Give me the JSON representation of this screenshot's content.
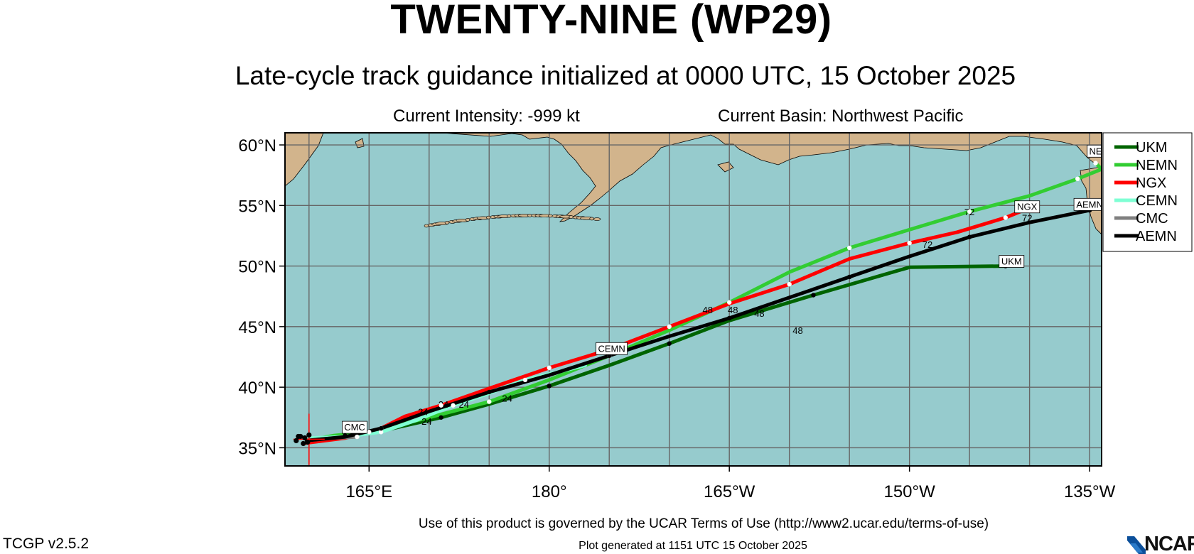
{
  "header": {
    "title": "TWENTY-NINE (WP29)",
    "subtitle": "Late-cycle track guidance initialized at 0000 UTC, 15 October 2025",
    "intensity": "Current Intensity: -999 kt",
    "basin": "Current Basin: Northwest Pacific"
  },
  "axes": {
    "lat_labels": [
      "60°N",
      "55°N",
      "50°N",
      "45°N",
      "40°N",
      "35°N"
    ],
    "lon_labels": [
      "165°E",
      "180°",
      "165°W",
      "150°W",
      "135°W"
    ]
  },
  "colors": {
    "ocean": "#96cbcd",
    "land": "#d2b48c",
    "grid": "#666666",
    "marker": "#ff0000"
  },
  "chart_data": {
    "type": "map",
    "lat_range": [
      33.5,
      61
    ],
    "lon_range_east": [
      158,
      226
    ],
    "initial_position": {
      "lat": 35.7,
      "lon": 160
    },
    "series": [
      {
        "name": "UKM",
        "color": "#006400",
        "label": "UKM",
        "points": [
          [
            159.8,
            35.5
          ],
          [
            161,
            35.7
          ],
          [
            163,
            36.0
          ],
          [
            167,
            36.6
          ],
          [
            171,
            37.5
          ],
          [
            175,
            38.6
          ],
          [
            180,
            40.1
          ],
          [
            185,
            41.8
          ],
          [
            190,
            43.6
          ],
          [
            195,
            45.5
          ],
          [
            202,
            47.6
          ],
          [
            210,
            49.9
          ],
          [
            218,
            50.0
          ]
        ]
      },
      {
        "name": "NEMN",
        "color": "#32cd32",
        "label": "NEMN",
        "points": [
          [
            159.8,
            35.6
          ],
          [
            162,
            36.0
          ],
          [
            165,
            36.3
          ],
          [
            170,
            37.5
          ],
          [
            175,
            38.8
          ],
          [
            180,
            40.6
          ],
          [
            185,
            42.6
          ],
          [
            190,
            44.7
          ],
          [
            195,
            47.0
          ],
          [
            200,
            49.5
          ],
          [
            205,
            51.5
          ],
          [
            210,
            53.0
          ],
          [
            215,
            54.5
          ],
          [
            220,
            55.8
          ],
          [
            224,
            57.2
          ],
          [
            226,
            58.0
          ],
          [
            225.5,
            58.5
          ]
        ]
      },
      {
        "name": "NGX",
        "color": "#ff0000",
        "label": "NGX",
        "points": [
          [
            159.8,
            35.4
          ],
          [
            163,
            35.8
          ],
          [
            166,
            36.6
          ],
          [
            168,
            37.6
          ],
          [
            171,
            38.5
          ],
          [
            175,
            39.9
          ],
          [
            180,
            41.6
          ],
          [
            185,
            43.1
          ],
          [
            190,
            45.0
          ],
          [
            195,
            46.9
          ],
          [
            200,
            48.5
          ],
          [
            205,
            50.6
          ],
          [
            210,
            51.9
          ],
          [
            214,
            52.8
          ],
          [
            218,
            54.0
          ],
          [
            219.5,
            54.6
          ]
        ]
      },
      {
        "name": "CEMN",
        "color": "#7fffd4",
        "label": "CEMN",
        "points": [
          [
            160,
            35.8
          ],
          [
            163,
            35.9
          ],
          [
            166,
            36.3
          ],
          [
            169,
            37.3
          ],
          [
            172,
            38.5
          ],
          [
            175,
            39.5
          ],
          [
            178,
            40.6
          ],
          [
            183,
            41.8
          ]
        ]
      },
      {
        "name": "CMC",
        "color": "#808080",
        "label": "CMC",
        "points": [
          [
            159.8,
            35.6
          ],
          [
            162,
            35.8
          ],
          [
            164,
            35.9
          ]
        ]
      },
      {
        "name": "AEMN",
        "color": "#000000",
        "label": "AEMN",
        "points": [
          [
            159.8,
            35.6
          ],
          [
            163,
            35.9
          ],
          [
            166,
            36.6
          ],
          [
            170,
            38.0
          ],
          [
            175,
            39.6
          ],
          [
            180,
            41.0
          ],
          [
            185,
            42.6
          ],
          [
            190,
            44.2
          ],
          [
            195,
            45.7
          ],
          [
            200,
            47.4
          ],
          [
            205,
            49.1
          ],
          [
            210,
            50.8
          ],
          [
            215,
            52.4
          ],
          [
            220,
            53.6
          ],
          [
            225,
            54.6
          ]
        ]
      }
    ],
    "markers": [
      {
        "label": "24",
        "lon": 169.5,
        "lat": 37.7
      },
      {
        "label": "24",
        "lon": 171.2,
        "lat": 38.3
      },
      {
        "label": "24",
        "lon": 172.9,
        "lat": 38.3
      },
      {
        "label": "24",
        "lon": 169.8,
        "lat": 36.9
      },
      {
        "label": "24",
        "lon": 176.5,
        "lat": 38.8
      },
      {
        "label": "48",
        "lon": 193.2,
        "lat": 46.1
      },
      {
        "label": "48",
        "lon": 195.3,
        "lat": 46.1
      },
      {
        "label": "48",
        "lon": 197.5,
        "lat": 45.8
      },
      {
        "label": "48",
        "lon": 200.7,
        "lat": 44.4
      },
      {
        "label": "72",
        "lon": 215.0,
        "lat": 54.2
      },
      {
        "label": "72",
        "lon": 219.8,
        "lat": 53.7
      },
      {
        "label": "72",
        "lon": 211.5,
        "lat": 51.5
      }
    ],
    "annotations": [
      {
        "text": "CMC",
        "lon": 163.8,
        "lat": 36.6
      },
      {
        "text": "CEMN",
        "lon": 185.2,
        "lat": 43.1
      },
      {
        "text": "UKM",
        "lon": 218.5,
        "lat": 50.3
      },
      {
        "text": "NGX",
        "lon": 219.8,
        "lat": 54.8
      },
      {
        "text": "AEMN",
        "lon": 225.0,
        "lat": 55.0
      },
      {
        "text": "NEMN",
        "lon": 226.1,
        "lat": 59.4
      }
    ]
  },
  "legend": {
    "items": [
      {
        "label": "UKM",
        "color": "#006400"
      },
      {
        "label": "NEMN",
        "color": "#32cd32"
      },
      {
        "label": "NGX",
        "color": "#ff0000"
      },
      {
        "label": "CEMN",
        "color": "#7fffd4"
      },
      {
        "label": "CMC",
        "color": "#808080"
      },
      {
        "label": "AEMN",
        "color": "#000000"
      }
    ]
  },
  "footer": {
    "terms": "Use of this product is governed by the UCAR Terms of Use (http://www2.ucar.edu/terms-of-use)",
    "version": "TCGP v2.5.2",
    "generated": "Plot generated at 1151 UTC   15 October 2025",
    "logo": "NCAR"
  }
}
